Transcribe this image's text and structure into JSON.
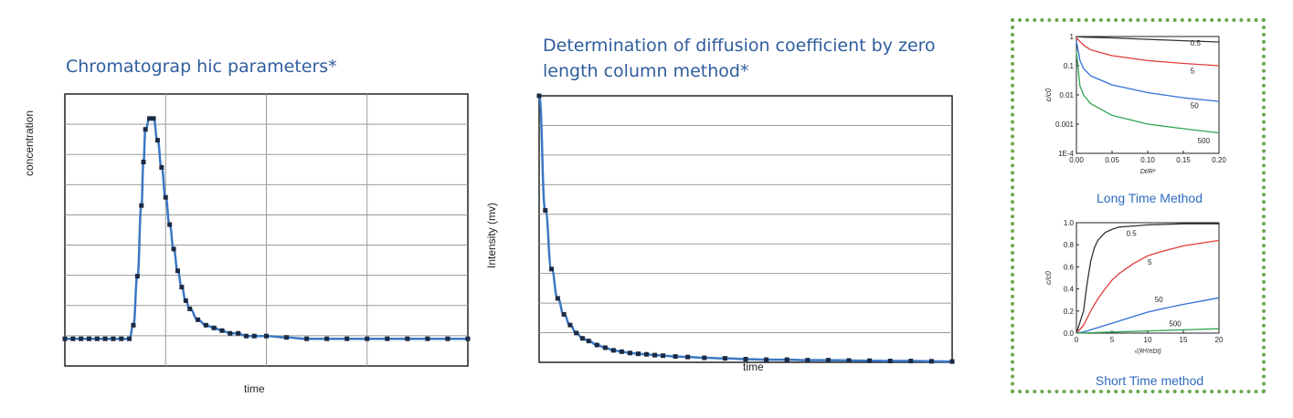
{
  "colors": {
    "title": "#2f5d9e",
    "curve": "#3a78c4",
    "marker": "#1c2a44",
    "box_border": "#6aa84f",
    "caption": "#2f6bbf",
    "series_0_5": "#333333",
    "series_5": "#e03c3c",
    "series_50": "#2f6fd6",
    "series_500": "#2ea44f"
  },
  "chart_data": [
    {
      "type": "line",
      "title": "Chromatograp hic parameters*",
      "xlabel": "time",
      "ylabel": "concentration",
      "grid": true,
      "markers": true,
      "xlim": [
        0,
        100
      ],
      "ylim": [
        0,
        1
      ],
      "series": [
        {
          "x": [
            0,
            2,
            4,
            6,
            8,
            10,
            12,
            14,
            16,
            17,
            18,
            19,
            19.5,
            20,
            21,
            22,
            23,
            24,
            25,
            26,
            27,
            28,
            29,
            30,
            31,
            33,
            35,
            37,
            39,
            41,
            43,
            45,
            47,
            50,
            55,
            60,
            65,
            70,
            75,
            80,
            85,
            90,
            95,
            100
          ],
          "y": [
            0.1,
            0.1,
            0.1,
            0.1,
            0.1,
            0.1,
            0.1,
            0.1,
            0.1,
            0.15,
            0.33,
            0.59,
            0.75,
            0.87,
            0.91,
            0.91,
            0.83,
            0.73,
            0.62,
            0.52,
            0.43,
            0.35,
            0.29,
            0.24,
            0.21,
            0.17,
            0.15,
            0.14,
            0.13,
            0.12,
            0.12,
            0.11,
            0.11,
            0.11,
            0.105,
            0.1,
            0.1,
            0.1,
            0.1,
            0.1,
            0.1,
            0.1,
            0.1,
            0.1
          ]
        }
      ]
    },
    {
      "type": "line",
      "title": "Determination of diffusion coefficient by zero length column method*",
      "xlabel": "time",
      "ylabel": "Intensity (mv)",
      "grid": true,
      "markers": true,
      "xlim": [
        0,
        100
      ],
      "ylim": [
        0,
        1
      ],
      "series": [
        {
          "x": [
            0,
            1.5,
            3,
            4.5,
            6,
            7.5,
            9,
            10.5,
            12,
            14,
            16,
            18,
            20,
            22,
            24,
            26,
            28,
            30,
            33,
            36,
            40,
            45,
            50,
            55,
            60,
            65,
            70,
            75,
            80,
            85,
            90,
            95,
            100
          ],
          "y": [
            1.0,
            0.57,
            0.35,
            0.24,
            0.18,
            0.14,
            0.11,
            0.09,
            0.08,
            0.065,
            0.055,
            0.045,
            0.04,
            0.035,
            0.032,
            0.03,
            0.027,
            0.025,
            0.022,
            0.02,
            0.017,
            0.015,
            0.012,
            0.01,
            0.01,
            0.008,
            0.008,
            0.007,
            0.006,
            0.005,
            0.005,
            0.004,
            0.003
          ]
        }
      ]
    },
    {
      "type": "line",
      "title": "Long Time Method",
      "xlabel": "Dt/R²",
      "ylabel": "c/c0",
      "yscale": "log",
      "xlim": [
        0,
        0.2
      ],
      "ylim": [
        0.0001,
        1
      ],
      "xticks": [
        "0.00",
        "0.05",
        "0.10",
        "0.15",
        "0.20"
      ],
      "yticks": [
        "1E-4",
        "0.001",
        "0.01",
        "0.1",
        "1"
      ],
      "series": [
        {
          "name": "0.5",
          "x": [
            0,
            0.01,
            0.05,
            0.1,
            0.15,
            0.2
          ],
          "y": [
            1,
            0.95,
            0.9,
            0.8,
            0.72,
            0.65
          ]
        },
        {
          "name": "5",
          "x": [
            0,
            0.01,
            0.02,
            0.05,
            0.1,
            0.15,
            0.2
          ],
          "y": [
            0.9,
            0.5,
            0.35,
            0.22,
            0.15,
            0.12,
            0.1
          ]
        },
        {
          "name": "50",
          "x": [
            0,
            0.005,
            0.01,
            0.02,
            0.05,
            0.1,
            0.15,
            0.2
          ],
          "y": [
            0.7,
            0.15,
            0.08,
            0.045,
            0.022,
            0.012,
            0.008,
            0.006
          ]
        },
        {
          "name": "500",
          "x": [
            0,
            0.005,
            0.01,
            0.02,
            0.05,
            0.1,
            0.15,
            0.2
          ],
          "y": [
            0.3,
            0.02,
            0.01,
            0.005,
            0.002,
            0.001,
            0.0007,
            0.0005
          ]
        }
      ]
    },
    {
      "type": "line",
      "title": "Short Time method",
      "xlabel": "√(R²/πDt)",
      "ylabel": "c/c0",
      "xlim": [
        0,
        20
      ],
      "ylim": [
        0,
        1
      ],
      "xticks": [
        "0",
        "5",
        "10",
        "15",
        "20"
      ],
      "yticks": [
        "0.0",
        "0.2",
        "0.4",
        "0.6",
        "0.8",
        "1.0"
      ],
      "series": [
        {
          "name": "0.5",
          "x": [
            0,
            1,
            1.5,
            2,
            2.5,
            3,
            4,
            5,
            6,
            8,
            10,
            15,
            20
          ],
          "y": [
            0,
            0.2,
            0.45,
            0.65,
            0.77,
            0.84,
            0.91,
            0.94,
            0.96,
            0.97,
            0.98,
            0.99,
            0.99
          ]
        },
        {
          "name": "5",
          "x": [
            0,
            1,
            2,
            3,
            4,
            5,
            6,
            8,
            10,
            12,
            15,
            20
          ],
          "y": [
            0,
            0.07,
            0.2,
            0.31,
            0.4,
            0.48,
            0.54,
            0.63,
            0.7,
            0.74,
            0.79,
            0.84
          ]
        },
        {
          "name": "50",
          "x": [
            0,
            1,
            2,
            4,
            6,
            8,
            10,
            12,
            15,
            20
          ],
          "y": [
            0,
            0.01,
            0.03,
            0.07,
            0.11,
            0.15,
            0.19,
            0.22,
            0.26,
            0.32
          ]
        },
        {
          "name": "500",
          "x": [
            0,
            2,
            5,
            10,
            15,
            20
          ],
          "y": [
            0,
            0.004,
            0.01,
            0.02,
            0.03,
            0.04
          ]
        }
      ]
    }
  ]
}
